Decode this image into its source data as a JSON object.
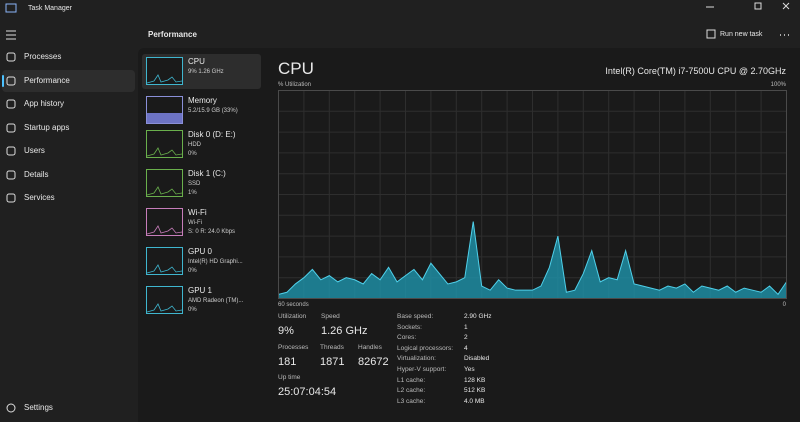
{
  "title_bar": {
    "title": "Task Manager"
  },
  "nav": {
    "items": [
      "Processes",
      "Performance",
      "App history",
      "Startup apps",
      "Users",
      "Details",
      "Services"
    ],
    "settings": "Settings"
  },
  "header": {
    "title": "Performance",
    "action": "Run new task"
  },
  "devices": [
    {
      "name": "CPU",
      "lines": [
        "9% 1.26 GHz"
      ]
    },
    {
      "name": "Memory",
      "lines": [
        "5.2/15.9 GB (33%)"
      ]
    },
    {
      "name": "Disk 0 (D: E:)",
      "lines": [
        "HDD",
        "0%"
      ]
    },
    {
      "name": "Disk 1 (C:)",
      "lines": [
        "SSD",
        "1%"
      ]
    },
    {
      "name": "Wi-Fi",
      "lines": [
        "Wi-Fi",
        "S: 0 R: 24.0 Kbps"
      ]
    },
    {
      "name": "GPU 0",
      "lines": [
        "Intel(R) HD Graphi...",
        "0%"
      ]
    },
    {
      "name": "GPU 1",
      "lines": [
        "AMD Radeon (TM)...",
        "0%"
      ]
    }
  ],
  "main": {
    "title": "CPU",
    "model": "Intel(R) Core(TM) i7-7500U CPU @ 2.70GHz"
  },
  "cpu_graph": {
    "y_label": "% Utilization",
    "y_max_label": "100%",
    "x_label": "60 seconds",
    "x_min_label": "0",
    "ylim": [
      0,
      100
    ],
    "values": [
      2,
      3,
      7,
      10,
      14,
      9,
      11,
      8,
      10,
      9,
      7,
      12,
      9,
      15,
      8,
      11,
      14,
      9,
      17,
      12,
      7,
      8,
      10,
      37,
      6,
      4,
      9,
      5,
      4,
      4,
      4,
      6,
      15,
      30,
      3,
      4,
      12,
      23,
      8,
      10,
      9,
      23,
      7,
      6,
      5,
      4,
      6,
      5,
      7,
      3,
      6,
      5,
      4,
      6,
      3,
      5,
      4,
      3,
      6,
      2,
      8
    ]
  },
  "stats": [
    {
      "label": "Utilization",
      "value": "9%"
    },
    {
      "label": "Speed",
      "value": "1.26 GHz"
    },
    {
      "label": "Processes",
      "value": "181"
    },
    {
      "label": "Threads",
      "value": "1871"
    },
    {
      "label": "Handles",
      "value": "82672"
    },
    {
      "label": "Up time",
      "value": "25:07:04:54"
    }
  ],
  "details": [
    [
      "Base speed:",
      "2.90 GHz"
    ],
    [
      "Sockets:",
      "1"
    ],
    [
      "Cores:",
      "2"
    ],
    [
      "Logical processors:",
      "4"
    ],
    [
      "Virtualization:",
      "Disabled"
    ],
    [
      "Hyper-V support:",
      "Yes"
    ],
    [
      "L1 cache:",
      "128 KB"
    ],
    [
      "L2 cache:",
      "512 KB"
    ],
    [
      "L3 cache:",
      "4.0 MB"
    ]
  ]
}
